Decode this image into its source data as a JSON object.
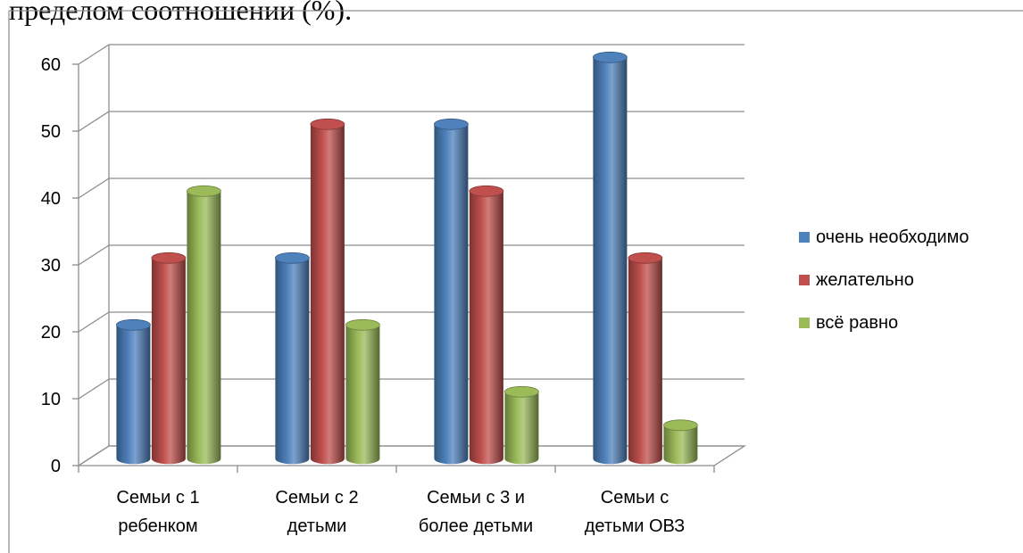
{
  "header": {
    "text": "пределом соотношении (%)."
  },
  "chart_data": {
    "type": "bar",
    "categories": [
      [
        "Семьи с 1",
        "ребенком"
      ],
      [
        "Семьи с 2",
        "детьми"
      ],
      [
        "Семьи с 3 и",
        "более детьми"
      ],
      [
        "Семьи с",
        "детьми ОВЗ"
      ]
    ],
    "series": [
      {
        "name": "очень необходимо",
        "values": [
          20,
          30,
          50,
          60
        ],
        "color": "#4f81bd"
      },
      {
        "name": "желательно",
        "values": [
          30,
          50,
          40,
          30
        ],
        "color": "#c0504d"
      },
      {
        "name": "всё равно",
        "values": [
          40,
          20,
          10,
          5
        ],
        "color": "#9bbb59"
      }
    ],
    "ylim": [
      0,
      60
    ],
    "yticks": [
      0,
      10,
      20,
      30,
      40,
      50,
      60
    ],
    "grid": true,
    "legend": "right",
    "style": "3d-cylinder"
  }
}
